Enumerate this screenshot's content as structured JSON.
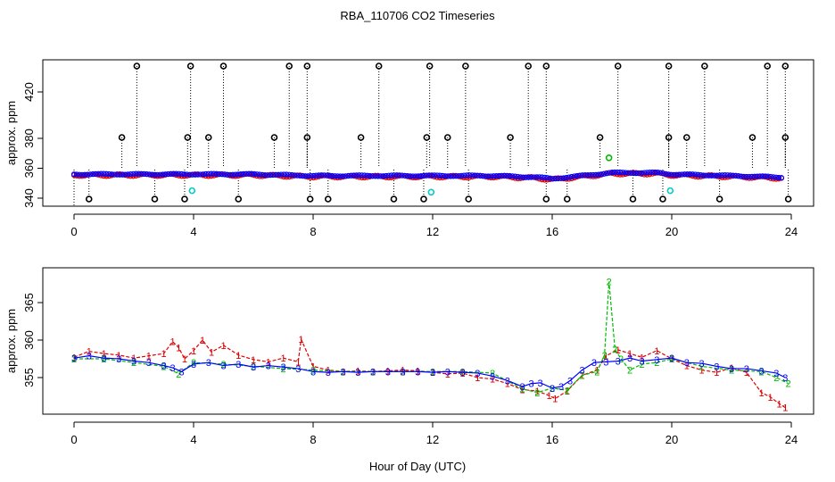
{
  "title": "RBA_110706  CO2 Timeseries",
  "colors": {
    "black": "#000000",
    "red": "#dd0000",
    "green": "#00bb00",
    "blue": "#0000ff",
    "cyan": "#00cccc"
  },
  "chart_data": [
    {
      "type": "scatter",
      "ylabel": "approx. ppm",
      "xlim": [
        0,
        24
      ],
      "ylim": [
        335,
        432
      ],
      "xticks": [
        "0",
        "4",
        "8",
        "12",
        "16",
        "20",
        "24"
      ],
      "yticks": [
        "340",
        "360",
        "380",
        "420"
      ],
      "grid": false,
      "legend": "none",
      "black_spike_times": [
        2.1,
        3.9,
        5.0,
        7.2,
        7.8,
        10.2,
        11.9,
        13.1,
        15.2,
        15.8,
        18.2,
        19.9,
        21.1,
        23.2,
        23.8
      ],
      "black_mid_times": [
        1.6,
        3.8,
        4.5,
        6.7,
        7.8,
        9.6,
        11.8,
        12.5,
        14.6,
        17.6,
        19.9,
        20.5,
        22.7,
        23.8
      ],
      "black_low_times": [
        0.5,
        2.7,
        3.7,
        5.5,
        7.9,
        8.5,
        10.7,
        11.7,
        13.2,
        15.8,
        16.5,
        18.7,
        19.7,
        21.6,
        23.9
      ],
      "cyan_points": [
        {
          "x": 3.95,
          "y": 345
        },
        {
          "x": 11.95,
          "y": 344
        },
        {
          "x": 19.95,
          "y": 345
        }
      ],
      "green_points": [
        {
          "x": 17.9,
          "y": 367
        }
      ],
      "baseline": [
        {
          "x": 0,
          "y": 356
        },
        {
          "x": 2,
          "y": 356
        },
        {
          "x": 4,
          "y": 356
        },
        {
          "x": 6,
          "y": 356
        },
        {
          "x": 8,
          "y": 355
        },
        {
          "x": 10,
          "y": 355
        },
        {
          "x": 12,
          "y": 355
        },
        {
          "x": 14,
          "y": 355
        },
        {
          "x": 15.5,
          "y": 354
        },
        {
          "x": 16,
          "y": 353
        },
        {
          "x": 17,
          "y": 355
        },
        {
          "x": 18,
          "y": 357
        },
        {
          "x": 19.5,
          "y": 357
        },
        {
          "x": 20,
          "y": 356
        },
        {
          "x": 22,
          "y": 355
        },
        {
          "x": 23.6,
          "y": 354
        }
      ]
    },
    {
      "type": "line",
      "ylabel": "approx. ppm",
      "xlabel": "Hour of Day (UTC)",
      "xlim": [
        0,
        24
      ],
      "ylim": [
        351,
        369
      ],
      "xticks": [
        "0",
        "4",
        "8",
        "12",
        "16",
        "20",
        "24"
      ],
      "yticks": [
        "355",
        "360",
        "365"
      ],
      "grid": false,
      "legend": "none",
      "series": [
        {
          "color": "#dd0000",
          "marker": "1",
          "x": [
            0,
            0.5,
            1,
            1.5,
            2,
            2.5,
            3,
            3.3,
            3.5,
            3.7,
            4,
            4.3,
            4.6,
            5,
            5.5,
            6,
            6.5,
            7,
            7.5,
            7.6,
            8,
            8.5,
            9,
            9.5,
            10,
            10.5,
            11,
            11.5,
            12,
            12.5,
            13,
            13.5,
            14,
            14.5,
            15,
            15.5,
            15.9,
            16.1,
            16.5,
            17,
            17.5,
            17.8,
            18.2,
            18.6,
            19,
            19.5,
            20,
            20.5,
            21,
            21.5,
            22,
            22.5,
            23,
            23.3,
            23.6,
            23.8
          ],
          "y": [
            357.7,
            358.5,
            358.2,
            358,
            357.6,
            357.9,
            358.2,
            359.8,
            359,
            357.5,
            358.6,
            360,
            358.4,
            359.3,
            358,
            357.4,
            357.1,
            357.6,
            357.1,
            360.1,
            356.5,
            356,
            355.8,
            355.9,
            355.8,
            355.9,
            356,
            355.9,
            355.7,
            355.5,
            355.6,
            355,
            354.8,
            354.2,
            353.4,
            353.2,
            352.6,
            352.2,
            353.2,
            355.3,
            356,
            357.9,
            358.7,
            358.2,
            357.7,
            358.6,
            357.5,
            356.6,
            356,
            355.7,
            356.3,
            355.7,
            353,
            352.4,
            351.5,
            351
          ]
        },
        {
          "color": "#00bb00",
          "marker": "2",
          "x": [
            0,
            1,
            2,
            3,
            3.5,
            4,
            5,
            6,
            7,
            8,
            9,
            10,
            11,
            12,
            13,
            14,
            15,
            15.5,
            16,
            16.5,
            17,
            17.5,
            17.75,
            17.9,
            18.1,
            18.3,
            18.6,
            19,
            19.5,
            20,
            21,
            22,
            23,
            23.5,
            23.9
          ],
          "y": [
            357.5,
            357.5,
            357,
            356.5,
            355.5,
            357,
            356.8,
            356.5,
            356.2,
            356,
            355.8,
            355.8,
            355.8,
            355.8,
            355.8,
            355.6,
            353.5,
            353,
            353.6,
            353.3,
            355.3,
            355.8,
            358,
            367.8,
            358.8,
            357.5,
            356,
            356.8,
            357,
            357.5,
            356.5,
            356,
            355.8,
            355,
            354.2
          ]
        },
        {
          "color": "#0000ff",
          "marker": "3",
          "x": [
            0,
            0.5,
            1,
            1.5,
            2,
            2.5,
            3,
            3.3,
            3.6,
            4,
            4.5,
            5,
            5.5,
            6,
            6.5,
            7,
            7.5,
            8,
            8.5,
            9,
            9.5,
            10,
            10.5,
            11,
            11.5,
            12,
            12.5,
            13,
            13.5,
            14,
            14.5,
            15,
            15.3,
            15.6,
            16,
            16.3,
            16.6,
            17,
            17.4,
            17.8,
            18.2,
            18.6,
            19,
            19.5,
            20,
            20.5,
            21,
            21.5,
            22,
            22.5,
            23,
            23.5,
            23.8
          ],
          "y": [
            357.6,
            357.9,
            357.6,
            357.5,
            357.2,
            357,
            356.6,
            356.3,
            355.8,
            356.8,
            357,
            356.6,
            356.8,
            356.4,
            356.6,
            356.4,
            356.2,
            355.8,
            355.7,
            355.8,
            355.7,
            355.8,
            355.8,
            355.8,
            355.8,
            355.7,
            355.8,
            355.7,
            355.6,
            355.2,
            354.6,
            353.8,
            354.2,
            354.3,
            353.6,
            353.8,
            354.6,
            356,
            357,
            357.1,
            357.2,
            357.6,
            357.2,
            357.4,
            357.6,
            357,
            356.9,
            356.5,
            356.2,
            356.2,
            355.9,
            355.6,
            355
          ]
        }
      ]
    }
  ]
}
